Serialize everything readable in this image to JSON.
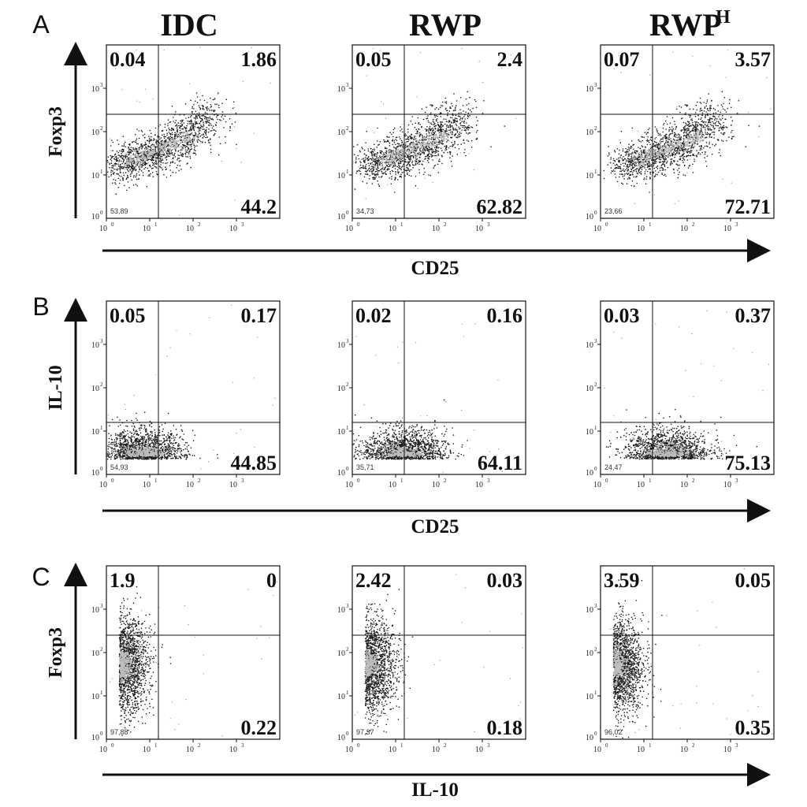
{
  "chart_data": {
    "type": "scatter",
    "description_kind": "flow cytometry quadrant dot plots",
    "colors": {
      "ink": "#111111",
      "dots": "#1a1a1a",
      "core": "#bdbdbd"
    },
    "columns": [
      {
        "title": "IDC",
        "sup": ""
      },
      {
        "title": "RWP",
        "sup": ""
      },
      {
        "title": "RWP",
        "sup": "H"
      }
    ],
    "axis_ticks": [
      {
        "base": "10",
        "exp": "0"
      },
      {
        "base": "10",
        "exp": "1"
      },
      {
        "base": "10",
        "exp": "2"
      },
      {
        "base": "10",
        "exp": "3"
      }
    ],
    "axis_decades": 4,
    "rows": [
      {
        "letter": "A",
        "ylabel": "Foxp3",
        "xlabel": "CD25",
        "gate": {
          "x_log": 1.2,
          "y_log": 2.4
        },
        "pattern": "diagonal",
        "panels": [
          {
            "ul": "0.04",
            "ur": "1.86",
            "lr": "44.2",
            "ll_small": "53,89"
          },
          {
            "ul": "0.05",
            "ur": "2.4",
            "lr": "62.82",
            "ll_small": "34,73"
          },
          {
            "ul": "0.07",
            "ur": "3.57",
            "lr": "72.71",
            "ll_small": "23,66"
          }
        ]
      },
      {
        "letter": "B",
        "ylabel": "IL-10",
        "xlabel": "CD25",
        "gate": {
          "x_log": 1.2,
          "y_log": 1.2
        },
        "pattern": "horizontal",
        "panels": [
          {
            "ul": "0.05",
            "ur": "0.17",
            "lr": "44.85",
            "ll_small": "54,93"
          },
          {
            "ul": "0.02",
            "ur": "0.16",
            "lr": "64.11",
            "ll_small": "35,71"
          },
          {
            "ul": "0.03",
            "ur": "0.37",
            "lr": "75.13",
            "ll_small": "24,47"
          }
        ]
      },
      {
        "letter": "C",
        "ylabel": "Foxp3",
        "xlabel": "IL-10",
        "gate": {
          "x_log": 1.2,
          "y_log": 2.4
        },
        "pattern": "vertical",
        "panels": [
          {
            "ul": "1.9",
            "ur": "0",
            "lr": "0.22",
            "ll_small": "97,88"
          },
          {
            "ul": "2.42",
            "ur": "0.03",
            "lr": "0.18",
            "ll_small": "97,37"
          },
          {
            "ul": "3.59",
            "ur": "0.05",
            "lr": "0.35",
            "ll_small": "96,02"
          }
        ]
      }
    ]
  }
}
